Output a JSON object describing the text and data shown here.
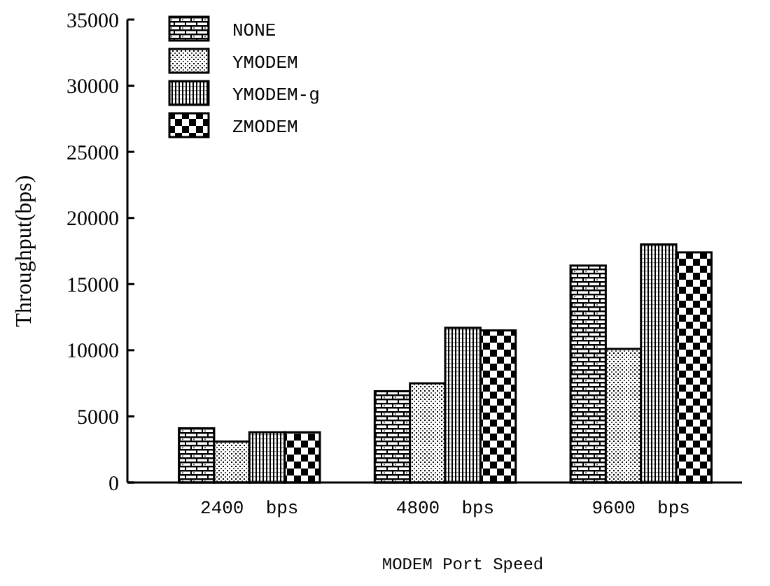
{
  "chart_data": {
    "type": "bar",
    "xlabel": "MODEM Port Speed",
    "ylabel": "Throughput(bps)",
    "categories": [
      "2400  bps",
      "4800  bps",
      "9600  bps"
    ],
    "series": [
      {
        "name": "NONE",
        "color": "#000000",
        "values": [
          4100,
          6900,
          16400
        ]
      },
      {
        "name": "YMODEM",
        "color": "#000000",
        "values": [
          3100,
          7500,
          10100
        ]
      },
      {
        "name": "YMODEM-g",
        "color": "#000000",
        "values": [
          3800,
          11700,
          18000
        ]
      },
      {
        "name": "ZMODEM",
        "color": "#000000",
        "values": [
          3800,
          11500,
          17400
        ]
      }
    ],
    "ylim": [
      0,
      35000
    ],
    "yticks": [
      0,
      5000,
      10000,
      15000,
      20000,
      25000,
      30000,
      35000
    ],
    "grid": false,
    "legend": "top left"
  }
}
